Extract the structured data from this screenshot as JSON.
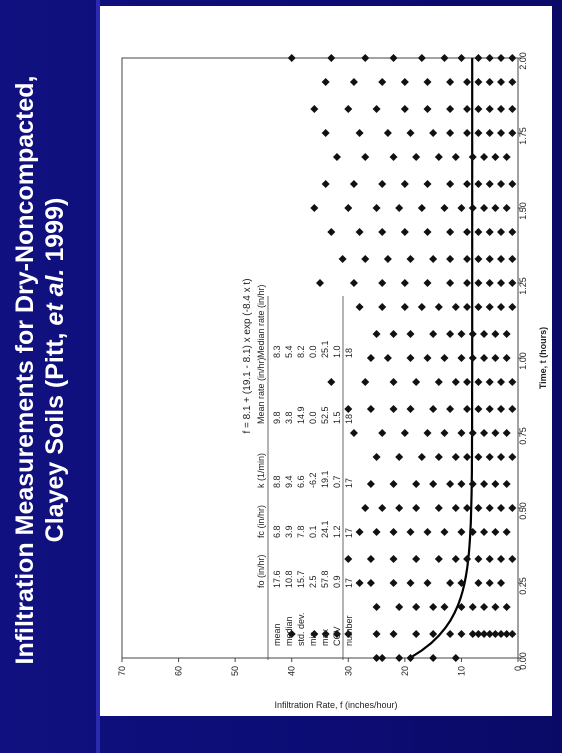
{
  "slide": {
    "title_line1": "Infiltration Measurements for Dry-Noncompacted,",
    "title_line2_pre": "Clayey Soils (Pitt, ",
    "title_line2_em": "et al.",
    "title_line2_post": " 1999)",
    "colors": {
      "background": "#0c0c74",
      "title": "#ffffff",
      "plot_bg": "#ffffff",
      "marks": "#111111"
    }
  },
  "chart_data": {
    "type": "scatter",
    "title": "",
    "xlabel": "Time, t (hours)",
    "ylabel": "Infiltration Rate, f (inches/hour)",
    "xlim": [
      0,
      2
    ],
    "ylim": [
      0,
      70
    ],
    "x_ticks": [
      "0.00",
      "0.25",
      "0.50",
      "0.75",
      "1.00",
      "1.25",
      "1.50",
      "1.75",
      "2.00"
    ],
    "y_ticks": [
      "0",
      "10",
      "20",
      "30",
      "40",
      "50",
      "60",
      "70"
    ],
    "equation": "f = 8.1 + (19.1 - 8.1) x exp (-8.4 x t)",
    "fitted_curve": {
      "fc": 8.1,
      "fo": 19.1,
      "k": 8.4
    },
    "series": [
      {
        "points": [
          [
            0.0,
            24
          ],
          [
            0.0,
            25
          ],
          [
            0.0,
            21
          ],
          [
            0.0,
            19
          ],
          [
            0.0,
            15
          ],
          [
            0.0,
            11
          ],
          [
            0.08,
            40
          ],
          [
            0.08,
            36
          ],
          [
            0.08,
            34
          ],
          [
            0.08,
            32
          ],
          [
            0.08,
            30
          ],
          [
            0.08,
            25
          ],
          [
            0.08,
            22
          ],
          [
            0.08,
            18
          ],
          [
            0.08,
            15
          ],
          [
            0.08,
            12
          ],
          [
            0.08,
            10
          ],
          [
            0.08,
            8
          ],
          [
            0.08,
            7
          ],
          [
            0.08,
            6
          ],
          [
            0.08,
            5
          ],
          [
            0.08,
            4
          ],
          [
            0.08,
            3
          ],
          [
            0.08,
            2
          ],
          [
            0.08,
            1
          ],
          [
            0.17,
            25
          ],
          [
            0.17,
            21
          ],
          [
            0.17,
            18
          ],
          [
            0.17,
            15
          ],
          [
            0.17,
            13
          ],
          [
            0.17,
            10
          ],
          [
            0.17,
            8
          ],
          [
            0.17,
            6
          ],
          [
            0.17,
            4
          ],
          [
            0.17,
            2
          ],
          [
            0.25,
            28
          ],
          [
            0.25,
            26
          ],
          [
            0.25,
            22
          ],
          [
            0.25,
            19
          ],
          [
            0.25,
            16
          ],
          [
            0.25,
            12
          ],
          [
            0.25,
            10
          ],
          [
            0.25,
            7
          ],
          [
            0.25,
            5
          ],
          [
            0.25,
            3
          ],
          [
            0.33,
            30
          ],
          [
            0.33,
            26
          ],
          [
            0.33,
            22
          ],
          [
            0.33,
            18
          ],
          [
            0.33,
            14
          ],
          [
            0.33,
            11
          ],
          [
            0.33,
            9
          ],
          [
            0.33,
            7
          ],
          [
            0.33,
            5
          ],
          [
            0.33,
            3
          ],
          [
            0.33,
            1
          ],
          [
            0.42,
            28
          ],
          [
            0.42,
            25
          ],
          [
            0.42,
            22
          ],
          [
            0.42,
            19
          ],
          [
            0.42,
            16
          ],
          [
            0.42,
            13
          ],
          [
            0.42,
            10
          ],
          [
            0.42,
            8
          ],
          [
            0.42,
            6
          ],
          [
            0.42,
            4
          ],
          [
            0.42,
            2
          ],
          [
            0.5,
            27
          ],
          [
            0.5,
            24
          ],
          [
            0.5,
            21
          ],
          [
            0.5,
            18
          ],
          [
            0.5,
            14
          ],
          [
            0.5,
            11
          ],
          [
            0.5,
            9
          ],
          [
            0.5,
            7
          ],
          [
            0.5,
            5
          ],
          [
            0.5,
            3
          ],
          [
            0.5,
            1
          ],
          [
            0.58,
            26
          ],
          [
            0.58,
            22
          ],
          [
            0.58,
            18
          ],
          [
            0.58,
            15
          ],
          [
            0.58,
            12
          ],
          [
            0.58,
            10
          ],
          [
            0.58,
            8
          ],
          [
            0.58,
            6
          ],
          [
            0.58,
            4
          ],
          [
            0.58,
            2
          ],
          [
            0.67,
            25
          ],
          [
            0.67,
            21
          ],
          [
            0.67,
            17
          ],
          [
            0.67,
            14
          ],
          [
            0.67,
            11
          ],
          [
            0.67,
            9
          ],
          [
            0.67,
            7
          ],
          [
            0.67,
            5
          ],
          [
            0.67,
            3
          ],
          [
            0.67,
            1
          ],
          [
            0.75,
            29
          ],
          [
            0.75,
            24
          ],
          [
            0.75,
            20
          ],
          [
            0.75,
            16
          ],
          [
            0.75,
            13
          ],
          [
            0.75,
            10
          ],
          [
            0.75,
            8
          ],
          [
            0.75,
            6
          ],
          [
            0.75,
            4
          ],
          [
            0.75,
            2
          ],
          [
            0.83,
            30
          ],
          [
            0.83,
            26
          ],
          [
            0.83,
            22
          ],
          [
            0.83,
            19
          ],
          [
            0.83,
            15
          ],
          [
            0.83,
            12
          ],
          [
            0.83,
            9
          ],
          [
            0.83,
            7
          ],
          [
            0.83,
            5
          ],
          [
            0.83,
            3
          ],
          [
            0.83,
            1
          ],
          [
            0.92,
            33
          ],
          [
            0.92,
            27
          ],
          [
            0.92,
            22
          ],
          [
            0.92,
            18
          ],
          [
            0.92,
            14
          ],
          [
            0.92,
            11
          ],
          [
            0.92,
            9
          ],
          [
            0.92,
            7
          ],
          [
            0.92,
            5
          ],
          [
            0.92,
            3
          ],
          [
            0.92,
            1
          ],
          [
            1.0,
            26
          ],
          [
            1.0,
            23
          ],
          [
            1.0,
            19
          ],
          [
            1.0,
            16
          ],
          [
            1.0,
            13
          ],
          [
            1.0,
            10
          ],
          [
            1.0,
            8
          ],
          [
            1.0,
            6
          ],
          [
            1.0,
            4
          ],
          [
            1.0,
            2
          ],
          [
            1.08,
            25
          ],
          [
            1.08,
            22
          ],
          [
            1.08,
            19
          ],
          [
            1.08,
            15
          ],
          [
            1.08,
            12
          ],
          [
            1.08,
            10
          ],
          [
            1.08,
            8
          ],
          [
            1.08,
            6
          ],
          [
            1.08,
            4
          ],
          [
            1.08,
            2
          ],
          [
            1.17,
            28
          ],
          [
            1.17,
            24
          ],
          [
            1.17,
            20
          ],
          [
            1.17,
            17
          ],
          [
            1.17,
            14
          ],
          [
            1.17,
            11
          ],
          [
            1.17,
            9
          ],
          [
            1.17,
            7
          ],
          [
            1.17,
            5
          ],
          [
            1.17,
            3
          ],
          [
            1.17,
            1
          ],
          [
            1.25,
            35
          ],
          [
            1.25,
            29
          ],
          [
            1.25,
            24
          ],
          [
            1.25,
            20
          ],
          [
            1.25,
            16
          ],
          [
            1.25,
            12
          ],
          [
            1.25,
            9
          ],
          [
            1.25,
            7
          ],
          [
            1.25,
            5
          ],
          [
            1.25,
            3
          ],
          [
            1.25,
            1
          ],
          [
            1.33,
            31
          ],
          [
            1.33,
            27
          ],
          [
            1.33,
            23
          ],
          [
            1.33,
            19
          ],
          [
            1.33,
            15
          ],
          [
            1.33,
            12
          ],
          [
            1.33,
            9
          ],
          [
            1.33,
            7
          ],
          [
            1.33,
            5
          ],
          [
            1.33,
            3
          ],
          [
            1.33,
            1
          ],
          [
            1.42,
            33
          ],
          [
            1.42,
            28
          ],
          [
            1.42,
            24
          ],
          [
            1.42,
            20
          ],
          [
            1.42,
            16
          ],
          [
            1.42,
            12
          ],
          [
            1.42,
            9
          ],
          [
            1.42,
            7
          ],
          [
            1.42,
            5
          ],
          [
            1.42,
            3
          ],
          [
            1.42,
            1
          ],
          [
            1.5,
            36
          ],
          [
            1.5,
            30
          ],
          [
            1.5,
            25
          ],
          [
            1.5,
            21
          ],
          [
            1.5,
            17
          ],
          [
            1.5,
            13
          ],
          [
            1.5,
            10
          ],
          [
            1.5,
            8
          ],
          [
            1.5,
            6
          ],
          [
            1.5,
            4
          ],
          [
            1.5,
            2
          ],
          [
            1.58,
            34
          ],
          [
            1.58,
            29
          ],
          [
            1.58,
            24
          ],
          [
            1.58,
            20
          ],
          [
            1.58,
            16
          ],
          [
            1.58,
            12
          ],
          [
            1.58,
            9
          ],
          [
            1.58,
            7
          ],
          [
            1.58,
            5
          ],
          [
            1.58,
            3
          ],
          [
            1.58,
            1
          ],
          [
            1.67,
            32
          ],
          [
            1.67,
            27
          ],
          [
            1.67,
            22
          ],
          [
            1.67,
            18
          ],
          [
            1.67,
            14
          ],
          [
            1.67,
            11
          ],
          [
            1.67,
            8
          ],
          [
            1.67,
            6
          ],
          [
            1.67,
            4
          ],
          [
            1.67,
            2
          ],
          [
            1.75,
            34
          ],
          [
            1.75,
            28
          ],
          [
            1.75,
            23
          ],
          [
            1.75,
            19
          ],
          [
            1.75,
            15
          ],
          [
            1.75,
            12
          ],
          [
            1.75,
            9
          ],
          [
            1.75,
            7
          ],
          [
            1.75,
            5
          ],
          [
            1.75,
            3
          ],
          [
            1.75,
            1
          ],
          [
            1.83,
            36
          ],
          [
            1.83,
            30
          ],
          [
            1.83,
            25
          ],
          [
            1.83,
            20
          ],
          [
            1.83,
            16
          ],
          [
            1.83,
            12
          ],
          [
            1.83,
            9
          ],
          [
            1.83,
            7
          ],
          [
            1.83,
            5
          ],
          [
            1.83,
            3
          ],
          [
            1.83,
            1
          ],
          [
            1.92,
            34
          ],
          [
            1.92,
            29
          ],
          [
            1.92,
            24
          ],
          [
            1.92,
            20
          ],
          [
            1.92,
            16
          ],
          [
            1.92,
            12
          ],
          [
            1.92,
            9
          ],
          [
            1.92,
            7
          ],
          [
            1.92,
            5
          ],
          [
            1.92,
            3
          ],
          [
            1.92,
            1
          ],
          [
            2.0,
            40
          ],
          [
            2.0,
            33
          ],
          [
            2.0,
            27
          ],
          [
            2.0,
            22
          ],
          [
            2.0,
            17
          ],
          [
            2.0,
            13
          ],
          [
            2.0,
            10
          ],
          [
            2.0,
            7
          ],
          [
            2.0,
            5
          ],
          [
            2.0,
            3
          ],
          [
            2.0,
            1
          ]
        ]
      }
    ],
    "stats_table": {
      "columns": [
        "",
        "fo (in/hr)",
        "fc (in/hr)",
        "k (1/min)",
        "Mean rate (in/hr)",
        "Median rate (in/hr)"
      ],
      "rows": [
        [
          "mean",
          "17.6",
          "6.8",
          "8.8",
          "9.8",
          "8.3"
        ],
        [
          "median",
          "10.8",
          "3.9",
          "9.4",
          "3.8",
          "5.4"
        ],
        [
          "std. dev.",
          "15.7",
          "7.8",
          "6.6",
          "14.9",
          "8.2"
        ],
        [
          "min",
          "2.5",
          "0.1",
          "-6.2",
          "0.0",
          "0.0"
        ],
        [
          "max",
          "57.8",
          "24.1",
          "19.1",
          "52.5",
          "25.1"
        ],
        [
          "COV",
          "0.9",
          "1.2",
          "0.7",
          "1.5",
          "1.0"
        ],
        [
          "number",
          "17",
          "17",
          "17",
          "18",
          "18"
        ]
      ]
    }
  }
}
